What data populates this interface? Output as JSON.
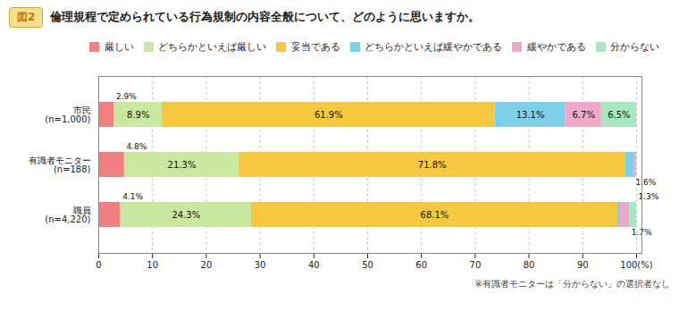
{
  "chart_data": {
    "type": "bar",
    "orientation": "horizontal",
    "stacked": true,
    "title": "倫理規程で定められている行為規制の内容全般について、どのように思いますか。",
    "fig_label": "図2",
    "footnote": "※有識者モニターは「分からない」の選択者なし",
    "categories": [
      "市民\n(n=1,000)",
      "有識者モニター\n(n=188)",
      "職員\n(n=4,220)"
    ],
    "series": [
      {
        "name": "厳しい",
        "color": "#f28080",
        "values": [
          2.9,
          4.8,
          4.1
        ],
        "value_labels": [
          "2.9%",
          "4.8%",
          "4.1%"
        ]
      },
      {
        "name": "どちらかといえば厳しい",
        "color": "#c8e8a0",
        "values": [
          8.9,
          21.3,
          24.3
        ],
        "value_labels": [
          "8.9%",
          "21.3%",
          "24.3%"
        ]
      },
      {
        "name": "妥当である",
        "color": "#f5c840",
        "values": [
          61.9,
          71.8,
          68.1
        ],
        "value_labels": [
          "61.9%",
          "71.8%",
          "68.1%"
        ]
      },
      {
        "name": "どちらかといえば緩やかである",
        "color": "#7ecfea",
        "values": [
          13.1,
          1.6,
          0.5
        ],
        "value_labels": [
          "13.1%",
          "1.6%",
          null
        ]
      },
      {
        "name": "緩やかである",
        "color": "#f0a8c8",
        "values": [
          6.7,
          0.5,
          1.7
        ],
        "value_labels": [
          "6.7%",
          null,
          "1.7%"
        ]
      },
      {
        "name": "分からない",
        "color": "#a8e8c0",
        "values": [
          6.5,
          0.0,
          1.3
        ],
        "value_labels": [
          "6.5%",
          null,
          "1.3%"
        ]
      }
    ],
    "xlim": [
      0,
      101
    ],
    "xticks": [
      0,
      10,
      20,
      30,
      40,
      50,
      60,
      70,
      80,
      90,
      {
        "value": 100,
        "label": "100(%)"
      }
    ],
    "grid": true,
    "legend": "top",
    "data_labels": true
  }
}
